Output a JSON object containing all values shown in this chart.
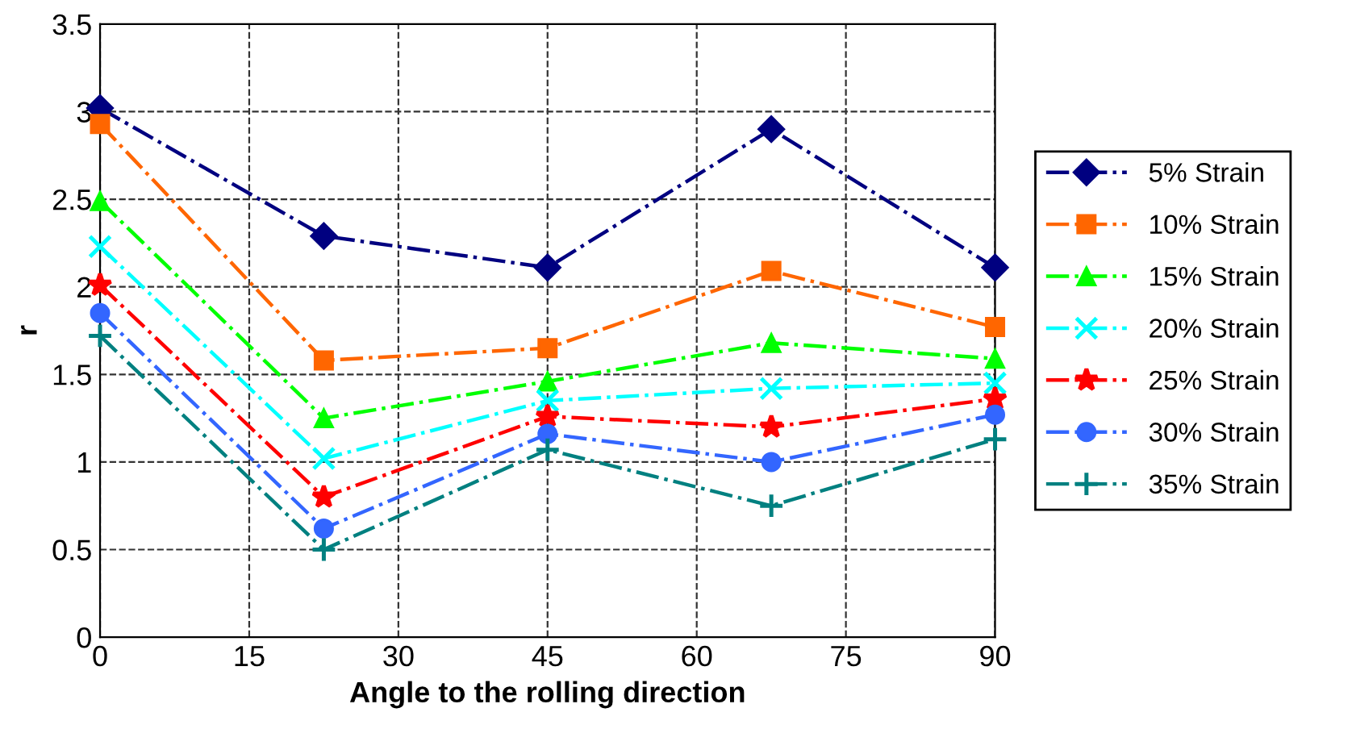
{
  "chart_data": {
    "type": "line",
    "xlabel": "Angle to the rolling direction",
    "ylabel": "r",
    "x": [
      0,
      22.5,
      45,
      67.5,
      90
    ],
    "series": [
      {
        "name": "5% Strain",
        "color": "#000080",
        "marker": "diamond",
        "values": [
          3.02,
          2.29,
          2.11,
          2.9,
          2.11
        ]
      },
      {
        "name": "10% Strain",
        "color": "#ff6600",
        "marker": "square",
        "values": [
          2.93,
          1.58,
          1.65,
          2.09,
          1.77
        ]
      },
      {
        "name": "15% Strain",
        "color": "#00ff00",
        "marker": "triangle",
        "values": [
          2.49,
          1.25,
          1.46,
          1.68,
          1.59
        ]
      },
      {
        "name": "20% Strain",
        "color": "#00ffff",
        "marker": "x",
        "values": [
          2.23,
          1.02,
          1.35,
          1.42,
          1.45
        ]
      },
      {
        "name": "25% Strain",
        "color": "#ff0000",
        "marker": "star",
        "values": [
          2.01,
          0.8,
          1.26,
          1.2,
          1.36
        ]
      },
      {
        "name": "30% Strain",
        "color": "#3366ff",
        "marker": "circle",
        "values": [
          1.85,
          0.62,
          1.16,
          1.0,
          1.27
        ]
      },
      {
        "name": "35% Strain",
        "color": "#008080",
        "marker": "cross",
        "values": [
          1.72,
          0.5,
          1.07,
          0.75,
          1.13
        ]
      }
    ],
    "xlim": [
      0,
      90
    ],
    "xticks": [
      0,
      15,
      30,
      45,
      60,
      75,
      90
    ],
    "ylim": [
      0,
      3.5
    ],
    "yticks": [
      0,
      0.5,
      1,
      1.5,
      2,
      2.5,
      3,
      3.5
    ],
    "grid": true,
    "legend": "right",
    "line_style": "dashdot"
  }
}
